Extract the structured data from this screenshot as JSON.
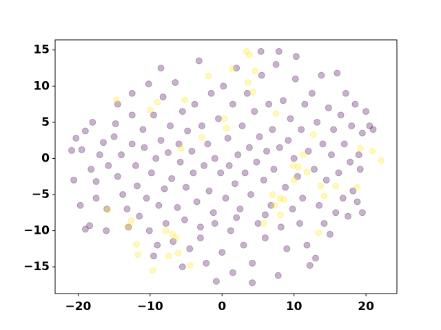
{
  "chart_data": {
    "type": "scatter",
    "xlim": [
      -23.2,
      24.3
    ],
    "ylim": [
      -18.7,
      16.4
    ],
    "xticks": [
      {
        "value": -20,
        "label": "−20"
      },
      {
        "value": -10,
        "label": "−10"
      },
      0,
      10,
      20
    ],
    "yticks": [
      {
        "value": -15,
        "label": "−15"
      },
      {
        "value": -10,
        "label": "−10"
      },
      {
        "value": -5,
        "label": "−5"
      },
      0,
      5,
      10,
      15
    ],
    "alpha": 0.3,
    "series": [
      {
        "color": "#440154",
        "x": [
          -20.9,
          -20.6,
          -19.7,
          -19,
          -18.4,
          -16.1,
          -20.3,
          -19,
          -18,
          -19.5,
          -18.2,
          -17.5,
          -17,
          -16.5,
          -15.8,
          -15,
          -14.8,
          -14.5,
          -14,
          -13.8,
          -13.2,
          -12.5,
          -12.5,
          -12,
          -11.8,
          -11.5,
          -11,
          -10.8,
          -10.5,
          -10.2,
          -10.1,
          -9.8,
          -9.5,
          -9.2,
          -9,
          -8.8,
          -8.5,
          -8.2,
          -8,
          -7.8,
          -7.5,
          -7.2,
          -7,
          -6.8,
          -6.5,
          -6.2,
          -6,
          -5.8,
          -5.5,
          -5.2,
          -5,
          -4.8,
          -4.5,
          -4.2,
          -4,
          -3.8,
          -3.5,
          -3.2,
          -3,
          -2.8,
          -2.5,
          -2.2,
          -2,
          -1.8,
          -1.5,
          -1.2,
          -1,
          -0.8,
          -0.5,
          -0.2,
          0,
          0.2,
          0.5,
          0.8,
          1,
          1.2,
          1.5,
          1.8,
          2,
          2.2,
          2.5,
          2.8,
          3,
          3.2,
          3.5,
          3.8,
          4,
          4.2,
          4.5,
          4.8,
          5,
          5.2,
          5.5,
          5.8,
          6,
          6.2,
          6.5,
          6.8,
          7,
          7.2,
          7.5,
          7.8,
          8,
          8.2,
          8.5,
          8.8,
          9,
          9.2,
          9.5,
          9.8,
          10,
          10.2,
          10.5,
          10.8,
          11,
          11.2,
          11.5,
          11.8,
          12,
          12.2,
          12.5,
          12.8,
          13,
          13.2,
          13.5,
          13.8,
          14,
          14.2,
          14.5,
          14.8,
          15,
          15.2,
          15.5,
          15.8,
          16,
          16.2,
          16.5,
          16.8,
          17,
          17.2,
          17.5,
          17.8,
          18,
          18.2,
          18.5,
          18.8,
          19,
          19.2,
          19.5,
          20,
          19.5,
          20.5,
          21,
          5.4,
          7.9,
          10.3,
          -8.5,
          -12.5,
          -14.5,
          -17.5,
          -16,
          -13,
          -9.5,
          -5.5,
          1.5,
          4.2,
          -3,
          -1,
          2,
          6
        ],
        "values": [
          1.1,
          -3,
          -6.5,
          -9.8,
          -9.3,
          -10,
          2.8,
          3.8,
          5,
          1.2,
          -1.5,
          -3.2,
          0.5,
          2.2,
          -1,
          3,
          4.8,
          -2.5,
          0.5,
          -5,
          -7,
          6,
          2,
          -1,
          -3.8,
          -8,
          4,
          1.5,
          -5.5,
          10.3,
          -10,
          -2,
          6,
          0,
          -12,
          -6.5,
          2.5,
          8.5,
          -4.2,
          -9,
          0.8,
          4.5,
          -2.8,
          -11.5,
          10.5,
          -6.8,
          2,
          -0.5,
          6.5,
          -8.5,
          -4,
          3.8,
          -12.5,
          1,
          -2,
          7.5,
          -6,
          13.5,
          -9.5,
          4.5,
          -1,
          -14.5,
          2,
          -4.5,
          9,
          -7.5,
          0,
          -17,
          5.5,
          -2,
          -13,
          10,
          -5.5,
          2.8,
          -1,
          -10,
          7.5,
          -3.5,
          12.5,
          0.5,
          -7,
          4.5,
          -12,
          -2,
          9,
          1.5,
          -5,
          -14.5,
          6.5,
          -0.5,
          -9,
          3,
          11.5,
          -3,
          -11,
          1,
          7.5,
          -6.5,
          4,
          -1.5,
          13,
          -16.2,
          1.5,
          -9.5,
          8,
          -4,
          -12.5,
          2.5,
          5.5,
          -7,
          0,
          11,
          -2.5,
          -9,
          4,
          -5.5,
          7.5,
          -12,
          1,
          -14.8,
          9,
          -1.5,
          -13.8,
          5,
          -6.5,
          11.5,
          2,
          -9,
          -3,
          7,
          -10.5,
          0.5,
          4,
          -7.5,
          11.8,
          -2,
          6,
          -5.5,
          2,
          9,
          -8,
          -0.5,
          4.5,
          -4.5,
          7.5,
          -6,
          0.5,
          -1.5,
          3.5,
          6.5,
          -7.5,
          4.5,
          4,
          14.8,
          14.8,
          14.1,
          12.5,
          9,
          7.5,
          -5.5,
          -7,
          -9.5,
          -13.5,
          -15,
          -15.8,
          -17.2,
          -11,
          -9,
          -8.2,
          -7.8
        ]
      },
      {
        "color": "#fde725",
        "x": [
          3.4,
          3.8,
          -1.9,
          1.4,
          4.6,
          4.3,
          3.6,
          -14.7,
          -10,
          -9,
          -5.2,
          0.3,
          0.6,
          -5.7,
          -2.8,
          7.5,
          9.9,
          10.6,
          11.8,
          10,
          13.7,
          15.8,
          14.2,
          19.2,
          20.9,
          22.1,
          18.8,
          8.1,
          8.6,
          7.3,
          8.1,
          5.8,
          -12.6,
          -13.1,
          -15.9,
          -7.8,
          -6.9,
          -6.4,
          -11.9,
          -11.7,
          -7.4,
          -6.1,
          -4.4,
          -9.6,
          13.4,
          12.7,
          11.3,
          7
        ],
        "values": [
          14.8,
          14.3,
          11.4,
          12.4,
          12.1,
          9.2,
          10.5,
          8.1,
          6.7,
          7.8,
          8.1,
          5.5,
          4.2,
          1.4,
          2.9,
          6.2,
          -1,
          -1.2,
          -1.9,
          -3,
          -3.8,
          -3.8,
          -5.2,
          1.4,
          1,
          -0.3,
          -4,
          -5.5,
          -5.7,
          -6.5,
          -7.8,
          -9,
          -8.6,
          -9.5,
          -7.1,
          -10,
          -10.5,
          -11,
          -11.9,
          -13.3,
          -13.5,
          -13.1,
          -14.8,
          -15.5,
          -10.3,
          3.3,
          0.5,
          -5
        ]
      }
    ]
  }
}
